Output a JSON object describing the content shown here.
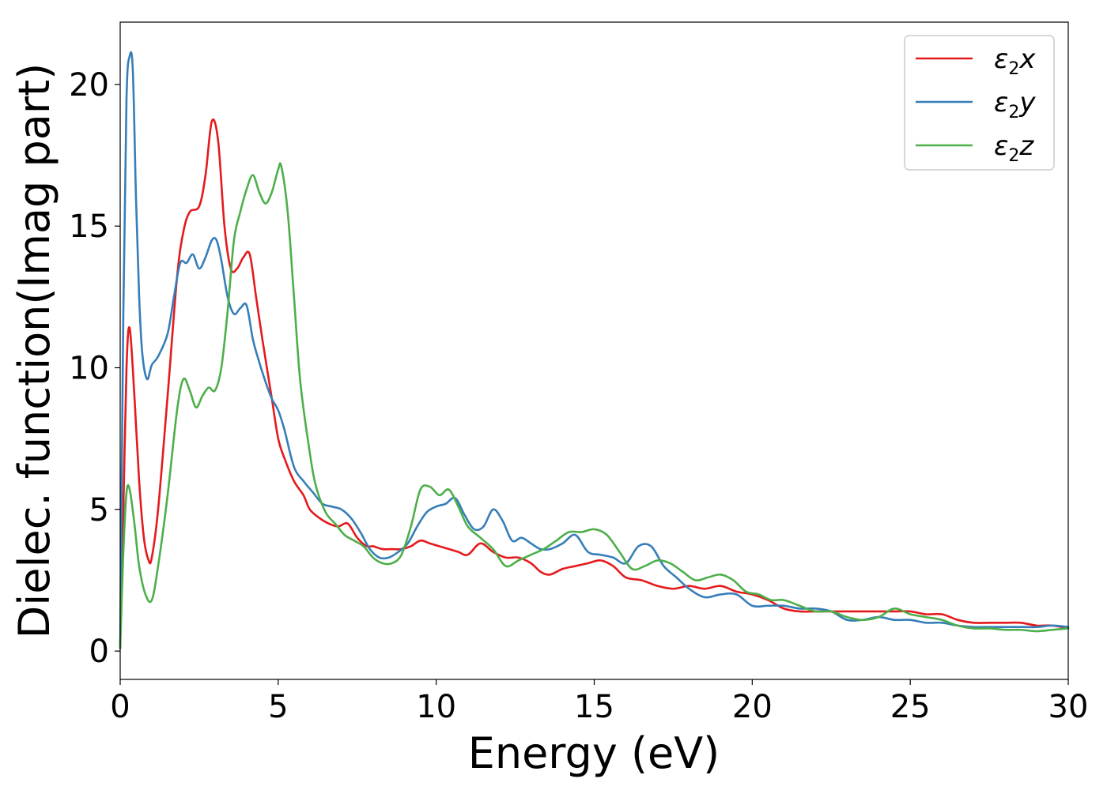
{
  "chart_data": {
    "type": "line",
    "title": "",
    "xlabel": "Energy (eV)",
    "ylabel": "Dielec. function(Imag part)",
    "xlim": [
      0,
      30
    ],
    "ylim": [
      -1,
      22.2
    ],
    "xticks": [
      0,
      5,
      10,
      15,
      20,
      25,
      30
    ],
    "yticks": [
      0,
      5,
      10,
      15,
      20
    ],
    "grid": false,
    "legend_position": "top-right",
    "series": [
      {
        "name": "ε2x",
        "legend_base": "ε",
        "legend_sub": "2",
        "legend_tail": "x",
        "color": "#e41a1c",
        "x": [
          0,
          0.1,
          0.2,
          0.3,
          0.45,
          0.6,
          0.75,
          0.9,
          1.0,
          1.2,
          1.5,
          1.8,
          2.0,
          2.2,
          2.5,
          2.7,
          2.9,
          3.1,
          3.3,
          3.5,
          3.7,
          3.9,
          4.1,
          4.3,
          4.5,
          4.8,
          5.0,
          5.2,
          5.5,
          5.8,
          6.0,
          6.3,
          6.6,
          6.9,
          7.2,
          7.5,
          7.8,
          8.0,
          8.3,
          8.6,
          8.9,
          9.2,
          9.5,
          9.8,
          10.1,
          10.4,
          10.7,
          11.0,
          11.4,
          11.8,
          12.2,
          12.6,
          13.0,
          13.3,
          13.6,
          14.0,
          14.4,
          14.8,
          15.2,
          15.6,
          16.0,
          16.5,
          17.0,
          17.5,
          18.0,
          18.5,
          19.0,
          19.5,
          20.0,
          20.5,
          21.0,
          21.5,
          22.0,
          22.5,
          23.0,
          23.5,
          24.0,
          24.5,
          25.0,
          25.5,
          26.0,
          26.5,
          27.0,
          27.5,
          28.0,
          28.5,
          29.0,
          29.5,
          30.0
        ],
        "y": [
          0.2,
          5.0,
          10.0,
          11.4,
          9.0,
          6.0,
          4.0,
          3.2,
          3.3,
          5.0,
          9.0,
          13.2,
          14.8,
          15.5,
          15.7,
          16.8,
          18.7,
          18.0,
          15.0,
          13.5,
          13.5,
          13.9,
          14.0,
          12.5,
          11.0,
          8.9,
          7.5,
          6.8,
          6.0,
          5.5,
          5.0,
          4.7,
          4.5,
          4.4,
          4.5,
          4.0,
          3.7,
          3.7,
          3.6,
          3.6,
          3.6,
          3.7,
          3.9,
          3.8,
          3.7,
          3.6,
          3.5,
          3.4,
          3.8,
          3.5,
          3.3,
          3.3,
          3.1,
          2.8,
          2.7,
          2.9,
          3.0,
          3.1,
          3.2,
          3.0,
          2.6,
          2.5,
          2.3,
          2.2,
          2.3,
          2.2,
          2.3,
          2.1,
          2.0,
          1.8,
          1.5,
          1.4,
          1.4,
          1.4,
          1.4,
          1.4,
          1.4,
          1.4,
          1.4,
          1.3,
          1.3,
          1.1,
          1.0,
          1.0,
          1.0,
          1.0,
          0.9,
          0.9,
          0.8
        ]
      },
      {
        "name": "ε2y",
        "legend_base": "ε",
        "legend_sub": "2",
        "legend_tail": "y",
        "color": "#377eb8",
        "x": [
          0,
          0.1,
          0.2,
          0.3,
          0.4,
          0.5,
          0.6,
          0.7,
          0.85,
          1.0,
          1.2,
          1.5,
          1.7,
          1.9,
          2.1,
          2.3,
          2.5,
          2.7,
          2.9,
          3.05,
          3.2,
          3.4,
          3.6,
          3.8,
          4.0,
          4.2,
          4.4,
          4.6,
          4.8,
          5.0,
          5.2,
          5.5,
          5.8,
          6.1,
          6.4,
          6.7,
          7.0,
          7.3,
          7.6,
          7.9,
          8.2,
          8.5,
          8.8,
          9.1,
          9.4,
          9.7,
          10.0,
          10.3,
          10.6,
          10.9,
          11.2,
          11.5,
          11.8,
          12.1,
          12.4,
          12.7,
          13.0,
          13.3,
          13.6,
          14.0,
          14.4,
          14.8,
          15.2,
          15.6,
          16.0,
          16.4,
          16.8,
          17.2,
          17.6,
          18.0,
          18.5,
          19.0,
          19.5,
          20.0,
          20.5,
          21.0,
          21.5,
          22.0,
          22.5,
          23.0,
          23.5,
          24.0,
          24.5,
          25.0,
          25.5,
          26.0,
          26.5,
          27.0,
          27.5,
          28.0,
          28.5,
          29.0,
          29.5,
          30.0
        ],
        "y": [
          0.1,
          12.0,
          19.5,
          21.0,
          20.5,
          16.0,
          12.5,
          10.5,
          9.6,
          10.1,
          10.4,
          11.2,
          12.5,
          13.7,
          13.7,
          14.0,
          13.5,
          13.9,
          14.5,
          14.5,
          13.8,
          12.5,
          11.9,
          12.1,
          12.2,
          11.0,
          10.2,
          9.5,
          8.9,
          8.5,
          7.8,
          6.5,
          6.0,
          5.6,
          5.2,
          5.1,
          5.0,
          4.7,
          4.2,
          3.6,
          3.3,
          3.3,
          3.5,
          3.8,
          4.4,
          4.9,
          5.1,
          5.2,
          5.4,
          4.8,
          4.3,
          4.4,
          5.0,
          4.6,
          3.9,
          4.0,
          3.8,
          3.6,
          3.6,
          3.8,
          4.1,
          3.5,
          3.4,
          3.3,
          3.1,
          3.7,
          3.7,
          3.0,
          2.6,
          2.2,
          1.9,
          2.0,
          2.0,
          1.6,
          1.6,
          1.6,
          1.5,
          1.5,
          1.4,
          1.1,
          1.1,
          1.2,
          1.1,
          1.1,
          1.0,
          1.0,
          0.9,
          0.85,
          0.85,
          0.85,
          0.85,
          0.85,
          0.9,
          0.85
        ]
      },
      {
        "name": "ε2z",
        "legend_base": "ε",
        "legend_sub": "2",
        "legend_tail": "z",
        "color": "#4daf4a",
        "x": [
          0,
          0.1,
          0.2,
          0.3,
          0.45,
          0.6,
          0.8,
          1.0,
          1.2,
          1.5,
          1.8,
          2.0,
          2.2,
          2.4,
          2.6,
          2.8,
          3.0,
          3.2,
          3.4,
          3.6,
          3.8,
          4.0,
          4.2,
          4.4,
          4.6,
          4.8,
          5.0,
          5.1,
          5.3,
          5.5,
          5.7,
          6.0,
          6.2,
          6.5,
          6.8,
          7.1,
          7.4,
          7.7,
          8.0,
          8.3,
          8.6,
          8.9,
          9.2,
          9.5,
          9.8,
          10.1,
          10.4,
          10.7,
          11.0,
          11.4,
          11.8,
          12.2,
          12.6,
          13.0,
          13.4,
          13.8,
          14.2,
          14.6,
          15.0,
          15.4,
          15.8,
          16.2,
          16.6,
          17.0,
          17.4,
          17.8,
          18.2,
          18.6,
          19.0,
          19.4,
          19.8,
          20.2,
          20.6,
          21.0,
          21.5,
          22.0,
          22.5,
          23.0,
          23.5,
          24.0,
          24.5,
          25.0,
          25.5,
          26.0,
          26.5,
          27.0,
          27.5,
          28.0,
          28.5,
          29.0,
          29.5,
          30.0
        ],
        "y": [
          0.1,
          3.5,
          5.6,
          5.7,
          4.5,
          3.0,
          2.0,
          1.8,
          3.0,
          5.5,
          8.5,
          9.6,
          9.2,
          8.6,
          9.0,
          9.3,
          9.2,
          10.0,
          12.0,
          14.5,
          15.5,
          16.3,
          16.8,
          16.2,
          15.8,
          16.2,
          17.0,
          17.1,
          15.5,
          12.5,
          9.5,
          7.0,
          5.8,
          4.9,
          4.5,
          4.1,
          3.9,
          3.7,
          3.3,
          3.1,
          3.1,
          3.4,
          4.4,
          5.7,
          5.8,
          5.5,
          5.7,
          5.1,
          4.4,
          4.0,
          3.6,
          3.0,
          3.2,
          3.4,
          3.6,
          3.9,
          4.2,
          4.2,
          4.3,
          4.1,
          3.5,
          2.9,
          3.0,
          3.2,
          3.1,
          2.8,
          2.5,
          2.6,
          2.7,
          2.5,
          2.1,
          2.0,
          1.8,
          1.8,
          1.6,
          1.4,
          1.4,
          1.2,
          1.1,
          1.2,
          1.5,
          1.3,
          1.2,
          1.1,
          0.9,
          0.8,
          0.8,
          0.75,
          0.75,
          0.7,
          0.75,
          0.8
        ]
      }
    ]
  }
}
